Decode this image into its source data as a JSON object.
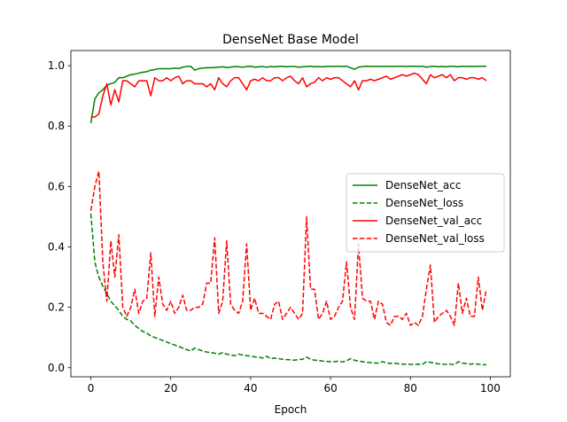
{
  "chart_data": {
    "type": "line",
    "title": "DenseNet Base Model",
    "xlabel": "Epoch",
    "ylabel": "",
    "xlim": [
      -5,
      105
    ],
    "ylim": [
      -0.03,
      1.05
    ],
    "xticks": [
      0,
      20,
      40,
      60,
      80,
      100
    ],
    "yticks": [
      0.0,
      0.2,
      0.4,
      0.6,
      0.8,
      1.0
    ],
    "x": [
      0,
      1,
      2,
      3,
      4,
      5,
      6,
      7,
      8,
      9,
      10,
      11,
      12,
      13,
      14,
      15,
      16,
      17,
      18,
      19,
      20,
      21,
      22,
      23,
      24,
      25,
      26,
      27,
      28,
      29,
      30,
      31,
      32,
      33,
      34,
      35,
      36,
      37,
      38,
      39,
      40,
      41,
      42,
      43,
      44,
      45,
      46,
      47,
      48,
      49,
      50,
      51,
      52,
      53,
      54,
      55,
      56,
      57,
      58,
      59,
      60,
      61,
      62,
      63,
      64,
      65,
      66,
      67,
      68,
      69,
      70,
      71,
      72,
      73,
      74,
      75,
      76,
      77,
      78,
      79,
      80,
      81,
      82,
      83,
      84,
      85,
      86,
      87,
      88,
      89,
      90,
      91,
      92,
      93,
      94,
      95,
      96,
      97,
      98,
      99
    ],
    "legend_position": "center-right",
    "grid": false,
    "series": [
      {
        "name": "DenseNet_acc",
        "color": "#008000",
        "dash": "solid",
        "values": [
          0.81,
          0.89,
          0.91,
          0.92,
          0.935,
          0.94,
          0.945,
          0.96,
          0.96,
          0.965,
          0.97,
          0.972,
          0.975,
          0.978,
          0.98,
          0.985,
          0.987,
          0.99,
          0.99,
          0.99,
          0.99,
          0.992,
          0.99,
          0.995,
          0.997,
          0.998,
          0.985,
          0.99,
          0.992,
          0.993,
          0.993,
          0.994,
          0.995,
          0.996,
          0.994,
          0.995,
          0.997,
          0.996,
          0.995,
          0.997,
          0.998,
          0.995,
          0.996,
          0.997,
          0.995,
          0.997,
          0.996,
          0.997,
          0.998,
          0.996,
          0.997,
          0.997,
          0.995,
          0.996,
          0.997,
          0.998,
          0.996,
          0.997,
          0.996,
          0.997,
          0.998,
          0.997,
          0.998,
          0.997,
          0.998,
          0.993,
          0.988,
          0.995,
          0.997,
          0.998,
          0.997,
          0.998,
          0.997,
          0.998,
          0.997,
          0.998,
          0.997,
          0.998,
          0.998,
          0.997,
          0.998,
          0.998,
          0.997,
          0.998,
          0.995,
          0.997,
          0.998,
          0.996,
          0.997,
          0.996,
          0.998,
          0.997,
          0.996,
          0.998,
          0.997,
          0.998,
          0.997,
          0.998,
          0.998,
          0.998
        ]
      },
      {
        "name": "DenseNet_loss",
        "color": "#008000",
        "dash": "dashed",
        "values": [
          0.51,
          0.35,
          0.3,
          0.27,
          0.245,
          0.22,
          0.205,
          0.19,
          0.17,
          0.16,
          0.155,
          0.14,
          0.13,
          0.12,
          0.115,
          0.105,
          0.1,
          0.095,
          0.09,
          0.085,
          0.08,
          0.075,
          0.07,
          0.065,
          0.06,
          0.055,
          0.065,
          0.06,
          0.055,
          0.052,
          0.05,
          0.048,
          0.045,
          0.05,
          0.045,
          0.042,
          0.04,
          0.045,
          0.042,
          0.04,
          0.038,
          0.036,
          0.035,
          0.032,
          0.038,
          0.03,
          0.032,
          0.03,
          0.028,
          0.027,
          0.026,
          0.025,
          0.027,
          0.028,
          0.035,
          0.028,
          0.025,
          0.024,
          0.022,
          0.021,
          0.02,
          0.02,
          0.022,
          0.019,
          0.023,
          0.03,
          0.025,
          0.022,
          0.02,
          0.018,
          0.017,
          0.016,
          0.015,
          0.02,
          0.016,
          0.014,
          0.015,
          0.013,
          0.012,
          0.012,
          0.011,
          0.011,
          0.012,
          0.011,
          0.02,
          0.018,
          0.015,
          0.013,
          0.012,
          0.011,
          0.012,
          0.01,
          0.02,
          0.015,
          0.014,
          0.012,
          0.013,
          0.012,
          0.01,
          0.01
        ]
      },
      {
        "name": "DenseNet_val_acc",
        "color": "#ff0000",
        "dash": "solid",
        "values": [
          0.83,
          0.83,
          0.84,
          0.9,
          0.94,
          0.87,
          0.92,
          0.88,
          0.95,
          0.95,
          0.94,
          0.93,
          0.95,
          0.95,
          0.95,
          0.9,
          0.96,
          0.95,
          0.95,
          0.96,
          0.95,
          0.96,
          0.965,
          0.94,
          0.95,
          0.95,
          0.94,
          0.94,
          0.94,
          0.93,
          0.94,
          0.92,
          0.96,
          0.94,
          0.93,
          0.95,
          0.96,
          0.96,
          0.94,
          0.92,
          0.95,
          0.955,
          0.95,
          0.96,
          0.95,
          0.95,
          0.96,
          0.96,
          0.95,
          0.96,
          0.965,
          0.95,
          0.94,
          0.96,
          0.93,
          0.94,
          0.945,
          0.96,
          0.95,
          0.96,
          0.955,
          0.96,
          0.96,
          0.95,
          0.94,
          0.93,
          0.95,
          0.92,
          0.95,
          0.95,
          0.955,
          0.95,
          0.955,
          0.96,
          0.965,
          0.955,
          0.96,
          0.965,
          0.97,
          0.965,
          0.97,
          0.975,
          0.97,
          0.955,
          0.94,
          0.97,
          0.96,
          0.965,
          0.97,
          0.96,
          0.97,
          0.95,
          0.96,
          0.96,
          0.955,
          0.96,
          0.96,
          0.955,
          0.96,
          0.95
        ]
      },
      {
        "name": "DenseNet_val_loss",
        "color": "#ff0000",
        "dash": "dashed",
        "values": [
          0.52,
          0.6,
          0.65,
          0.35,
          0.22,
          0.42,
          0.3,
          0.44,
          0.2,
          0.17,
          0.2,
          0.26,
          0.18,
          0.22,
          0.23,
          0.38,
          0.17,
          0.3,
          0.21,
          0.19,
          0.22,
          0.18,
          0.2,
          0.24,
          0.19,
          0.19,
          0.2,
          0.2,
          0.21,
          0.28,
          0.28,
          0.43,
          0.18,
          0.22,
          0.42,
          0.21,
          0.19,
          0.18,
          0.22,
          0.41,
          0.19,
          0.23,
          0.18,
          0.18,
          0.17,
          0.16,
          0.21,
          0.22,
          0.16,
          0.18,
          0.2,
          0.18,
          0.16,
          0.18,
          0.5,
          0.26,
          0.26,
          0.16,
          0.18,
          0.22,
          0.16,
          0.17,
          0.2,
          0.22,
          0.35,
          0.2,
          0.16,
          0.41,
          0.23,
          0.22,
          0.22,
          0.16,
          0.22,
          0.21,
          0.15,
          0.14,
          0.17,
          0.17,
          0.16,
          0.18,
          0.14,
          0.15,
          0.14,
          0.17,
          0.26,
          0.34,
          0.15,
          0.17,
          0.18,
          0.19,
          0.17,
          0.14,
          0.28,
          0.18,
          0.23,
          0.17,
          0.17,
          0.3,
          0.19,
          0.26
        ]
      }
    ]
  }
}
